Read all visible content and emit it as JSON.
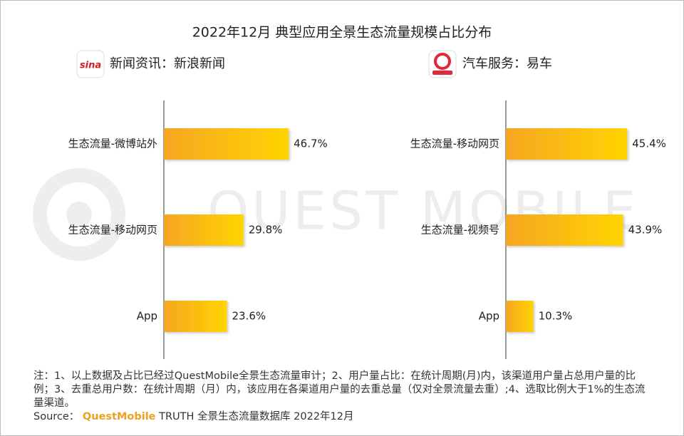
{
  "title": "2022年12月 典型应用全景生态流量规模占比分布",
  "watermark": "QUEST MOBILE",
  "chart_data": [
    {
      "type": "bar",
      "orientation": "horizontal",
      "title": "新闻资讯：新浪新闻",
      "categories": [
        "生态流量-微博站外",
        "生态流量-移动网页",
        "App"
      ],
      "values": [
        46.7,
        29.8,
        23.6
      ],
      "value_labels": [
        "46.7%",
        "29.8%",
        "23.6%"
      ],
      "gradient": [
        "#f6a623",
        "#ffd400"
      ]
    },
    {
      "type": "bar",
      "orientation": "horizontal",
      "title": "汽车服务：易车",
      "categories": [
        "生态流量-移动网页",
        "生态流量-视频号",
        "App"
      ],
      "values": [
        45.4,
        43.9,
        10.3
      ],
      "value_labels": [
        "45.4%",
        "43.9%",
        "10.3%"
      ],
      "gradient": [
        "#f6a623",
        "#ffd400"
      ]
    }
  ],
  "footer": {
    "note": "注：1、以上数据及占比已经过QuestMobile全景生态流量审计；2、用户量占比：在统计周期(月)内，该渠道用户量占总用户量的比例；3、去重总用户数：在统计周期（月）内，该应用在各渠道用户量的去重总量（仅对全景流量去重）;4、选取比例大于1%的生态流量渠道。",
    "source_label": "Source：",
    "source_brand": "QuestMobile",
    "source_text": "TRUTH 全景生态流量数据库 2022年12月"
  }
}
